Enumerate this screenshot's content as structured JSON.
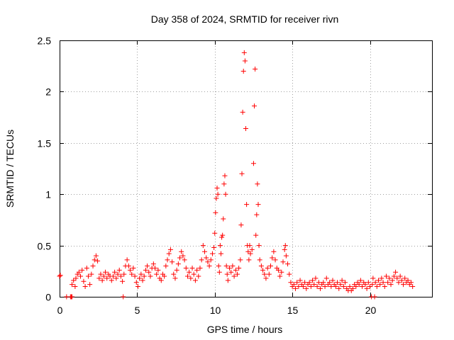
{
  "chart_data": {
    "type": "scatter",
    "title": "Day 358 of 2024, SRMTID for receiver rivn",
    "xlabel": "GPS time / hours",
    "ylabel": "SRMTID / TECUs",
    "xlim": [
      0,
      24
    ],
    "ylim": [
      0,
      2.5
    ],
    "x_ticks": [
      0,
      5,
      10,
      15,
      20
    ],
    "y_ticks": [
      0,
      0.5,
      1,
      1.5,
      2,
      2.5
    ],
    "x_tick_labels": [
      "0",
      "5",
      "10",
      "15",
      "20"
    ],
    "y_tick_labels": [
      "0",
      "0.5",
      "1",
      "1.5",
      "2",
      "2.5"
    ],
    "grid": true,
    "marker": "+",
    "series": [
      {
        "name": "SRMTID",
        "color": "#ff0000",
        "points": [
          [
            0.0,
            0.2
          ],
          [
            0.05,
            0.21
          ],
          [
            0.45,
            0.0
          ],
          [
            0.7,
            0.0
          ],
          [
            0.75,
            0.0
          ],
          [
            0.8,
            0.0
          ],
          [
            0.8,
            0.12
          ],
          [
            0.9,
            0.16
          ],
          [
            1.0,
            0.1
          ],
          [
            1.05,
            0.18
          ],
          [
            1.15,
            0.22
          ],
          [
            1.25,
            0.24
          ],
          [
            1.35,
            0.2
          ],
          [
            1.45,
            0.26
          ],
          [
            1.55,
            0.15
          ],
          [
            1.65,
            0.1
          ],
          [
            1.75,
            0.28
          ],
          [
            1.85,
            0.2
          ],
          [
            1.95,
            0.12
          ],
          [
            2.05,
            0.22
          ],
          [
            2.15,
            0.3
          ],
          [
            2.25,
            0.36
          ],
          [
            2.35,
            0.4
          ],
          [
            2.45,
            0.35
          ],
          [
            2.55,
            0.18
          ],
          [
            2.65,
            0.22
          ],
          [
            2.75,
            0.16
          ],
          [
            2.85,
            0.2
          ],
          [
            2.95,
            0.24
          ],
          [
            3.05,
            0.18
          ],
          [
            3.15,
            0.22
          ],
          [
            3.25,
            0.2
          ],
          [
            3.35,
            0.16
          ],
          [
            3.45,
            0.2
          ],
          [
            3.55,
            0.24
          ],
          [
            3.65,
            0.18
          ],
          [
            3.75,
            0.22
          ],
          [
            3.85,
            0.26
          ],
          [
            3.95,
            0.2
          ],
          [
            4.05,
            0.15
          ],
          [
            4.1,
            0.0
          ],
          [
            4.15,
            0.22
          ],
          [
            4.25,
            0.3
          ],
          [
            4.35,
            0.36
          ],
          [
            4.45,
            0.3
          ],
          [
            4.55,
            0.26
          ],
          [
            4.65,
            0.22
          ],
          [
            4.75,
            0.28
          ],
          [
            4.85,
            0.2
          ],
          [
            4.95,
            0.14
          ],
          [
            5.05,
            0.1
          ],
          [
            5.15,
            0.18
          ],
          [
            5.25,
            0.22
          ],
          [
            5.35,
            0.16
          ],
          [
            5.45,
            0.2
          ],
          [
            5.55,
            0.26
          ],
          [
            5.65,
            0.3
          ],
          [
            5.75,
            0.24
          ],
          [
            5.85,
            0.2
          ],
          [
            5.95,
            0.28
          ],
          [
            6.05,
            0.32
          ],
          [
            6.15,
            0.28
          ],
          [
            6.25,
            0.22
          ],
          [
            6.35,
            0.26
          ],
          [
            6.45,
            0.18
          ],
          [
            6.55,
            0.16
          ],
          [
            6.65,
            0.22
          ],
          [
            6.75,
            0.2
          ],
          [
            6.85,
            0.3
          ],
          [
            6.95,
            0.36
          ],
          [
            7.05,
            0.42
          ],
          [
            7.15,
            0.46
          ],
          [
            7.25,
            0.34
          ],
          [
            7.35,
            0.22
          ],
          [
            7.45,
            0.18
          ],
          [
            7.55,
            0.26
          ],
          [
            7.65,
            0.32
          ],
          [
            7.75,
            0.38
          ],
          [
            7.85,
            0.44
          ],
          [
            7.95,
            0.4
          ],
          [
            8.05,
            0.36
          ],
          [
            8.15,
            0.28
          ],
          [
            8.25,
            0.2
          ],
          [
            8.35,
            0.24
          ],
          [
            8.45,
            0.18
          ],
          [
            8.55,
            0.28
          ],
          [
            8.65,
            0.22
          ],
          [
            8.75,
            0.16
          ],
          [
            8.85,
            0.26
          ],
          [
            8.95,
            0.2
          ],
          [
            9.05,
            0.28
          ],
          [
            9.15,
            0.36
          ],
          [
            9.25,
            0.5
          ],
          [
            9.35,
            0.44
          ],
          [
            9.45,
            0.38
          ],
          [
            9.55,
            0.34
          ],
          [
            9.65,
            0.3
          ],
          [
            9.75,
            0.36
          ],
          [
            9.85,
            0.42
          ],
          [
            9.95,
            0.48
          ],
          [
            10.0,
            0.62
          ],
          [
            10.05,
            0.82
          ],
          [
            10.1,
            0.96
          ],
          [
            10.15,
            1.06
          ],
          [
            10.2,
            1.0
          ],
          [
            10.25,
            0.3
          ],
          [
            10.3,
            0.24
          ],
          [
            10.35,
            0.5
          ],
          [
            10.4,
            0.42
          ],
          [
            10.45,
            0.58
          ],
          [
            10.5,
            0.6
          ],
          [
            10.55,
            0.76
          ],
          [
            10.6,
            1.1
          ],
          [
            10.65,
            1.18
          ],
          [
            10.7,
            1.0
          ],
          [
            10.75,
            0.3
          ],
          [
            10.8,
            0.22
          ],
          [
            10.85,
            0.16
          ],
          [
            10.95,
            0.28
          ],
          [
            11.05,
            0.24
          ],
          [
            11.15,
            0.3
          ],
          [
            11.25,
            0.2
          ],
          [
            11.35,
            0.26
          ],
          [
            11.45,
            0.22
          ],
          [
            11.55,
            0.28
          ],
          [
            11.65,
            0.36
          ],
          [
            11.7,
            0.7
          ],
          [
            11.75,
            1.2
          ],
          [
            11.8,
            1.8
          ],
          [
            11.85,
            2.2
          ],
          [
            11.9,
            2.38
          ],
          [
            11.95,
            2.3
          ],
          [
            12.0,
            1.64
          ],
          [
            12.05,
            0.9
          ],
          [
            12.1,
            0.5
          ],
          [
            12.15,
            0.44
          ],
          [
            12.2,
            0.36
          ],
          [
            12.25,
            0.5
          ],
          [
            12.3,
            0.42
          ],
          [
            12.4,
            0.46
          ],
          [
            12.5,
            1.3
          ],
          [
            12.55,
            1.86
          ],
          [
            12.6,
            2.22
          ],
          [
            12.65,
            0.6
          ],
          [
            12.7,
            0.8
          ],
          [
            12.75,
            1.1
          ],
          [
            12.8,
            0.9
          ],
          [
            12.85,
            0.5
          ],
          [
            12.9,
            0.36
          ],
          [
            13.0,
            0.3
          ],
          [
            13.1,
            0.26
          ],
          [
            13.2,
            0.22
          ],
          [
            13.3,
            0.18
          ],
          [
            13.4,
            0.28
          ],
          [
            13.5,
            0.22
          ],
          [
            13.6,
            0.3
          ],
          [
            13.7,
            0.38
          ],
          [
            13.8,
            0.44
          ],
          [
            13.9,
            0.36
          ],
          [
            14.0,
            0.28
          ],
          [
            14.1,
            0.26
          ],
          [
            14.2,
            0.2
          ],
          [
            14.3,
            0.24
          ],
          [
            14.4,
            0.34
          ],
          [
            14.5,
            0.46
          ],
          [
            14.55,
            0.5
          ],
          [
            14.6,
            0.4
          ],
          [
            14.7,
            0.32
          ],
          [
            14.8,
            0.22
          ],
          [
            14.9,
            0.14
          ],
          [
            15.0,
            0.1
          ],
          [
            15.1,
            0.12
          ],
          [
            15.2,
            0.08
          ],
          [
            15.3,
            0.14
          ],
          [
            15.4,
            0.1
          ],
          [
            15.5,
            0.16
          ],
          [
            15.6,
            0.12
          ],
          [
            15.7,
            0.1
          ],
          [
            15.8,
            0.14
          ],
          [
            15.9,
            0.08
          ],
          [
            16.0,
            0.12
          ],
          [
            16.1,
            0.14
          ],
          [
            16.2,
            0.1
          ],
          [
            16.3,
            0.16
          ],
          [
            16.4,
            0.12
          ],
          [
            16.5,
            0.18
          ],
          [
            16.6,
            0.1
          ],
          [
            16.7,
            0.14
          ],
          [
            16.8,
            0.08
          ],
          [
            16.9,
            0.12
          ],
          [
            17.0,
            0.14
          ],
          [
            17.1,
            0.1
          ],
          [
            17.2,
            0.18
          ],
          [
            17.3,
            0.12
          ],
          [
            17.4,
            0.14
          ],
          [
            17.5,
            0.1
          ],
          [
            17.6,
            0.16
          ],
          [
            17.7,
            0.12
          ],
          [
            17.8,
            0.1
          ],
          [
            17.9,
            0.14
          ],
          [
            18.0,
            0.08
          ],
          [
            18.1,
            0.12
          ],
          [
            18.2,
            0.16
          ],
          [
            18.3,
            0.1
          ],
          [
            18.4,
            0.14
          ],
          [
            18.5,
            0.08
          ],
          [
            18.6,
            0.06
          ],
          [
            18.7,
            0.1
          ],
          [
            18.8,
            0.06
          ],
          [
            18.9,
            0.08
          ],
          [
            19.0,
            0.12
          ],
          [
            19.1,
            0.1
          ],
          [
            19.2,
            0.14
          ],
          [
            19.3,
            0.12
          ],
          [
            19.4,
            0.16
          ],
          [
            19.5,
            0.1
          ],
          [
            19.6,
            0.14
          ],
          [
            19.7,
            0.12
          ],
          [
            19.8,
            0.08
          ],
          [
            19.9,
            0.14
          ],
          [
            20.0,
            0.1
          ],
          [
            20.1,
            0.0
          ],
          [
            20.15,
            0.12
          ],
          [
            20.2,
            0.18
          ],
          [
            20.3,
            0.0
          ],
          [
            20.35,
            0.14
          ],
          [
            20.45,
            0.1
          ],
          [
            20.55,
            0.16
          ],
          [
            20.65,
            0.12
          ],
          [
            20.75,
            0.18
          ],
          [
            20.85,
            0.14
          ],
          [
            20.95,
            0.1
          ],
          [
            21.05,
            0.2
          ],
          [
            21.15,
            0.14
          ],
          [
            21.25,
            0.18
          ],
          [
            21.35,
            0.12
          ],
          [
            21.45,
            0.16
          ],
          [
            21.55,
            0.2
          ],
          [
            21.65,
            0.24
          ],
          [
            21.75,
            0.18
          ],
          [
            21.85,
            0.14
          ],
          [
            21.95,
            0.2
          ],
          [
            22.05,
            0.16
          ],
          [
            22.15,
            0.12
          ],
          [
            22.25,
            0.18
          ],
          [
            22.35,
            0.14
          ],
          [
            22.45,
            0.16
          ],
          [
            22.55,
            0.12
          ],
          [
            22.65,
            0.14
          ],
          [
            22.75,
            0.1
          ]
        ]
      }
    ]
  }
}
